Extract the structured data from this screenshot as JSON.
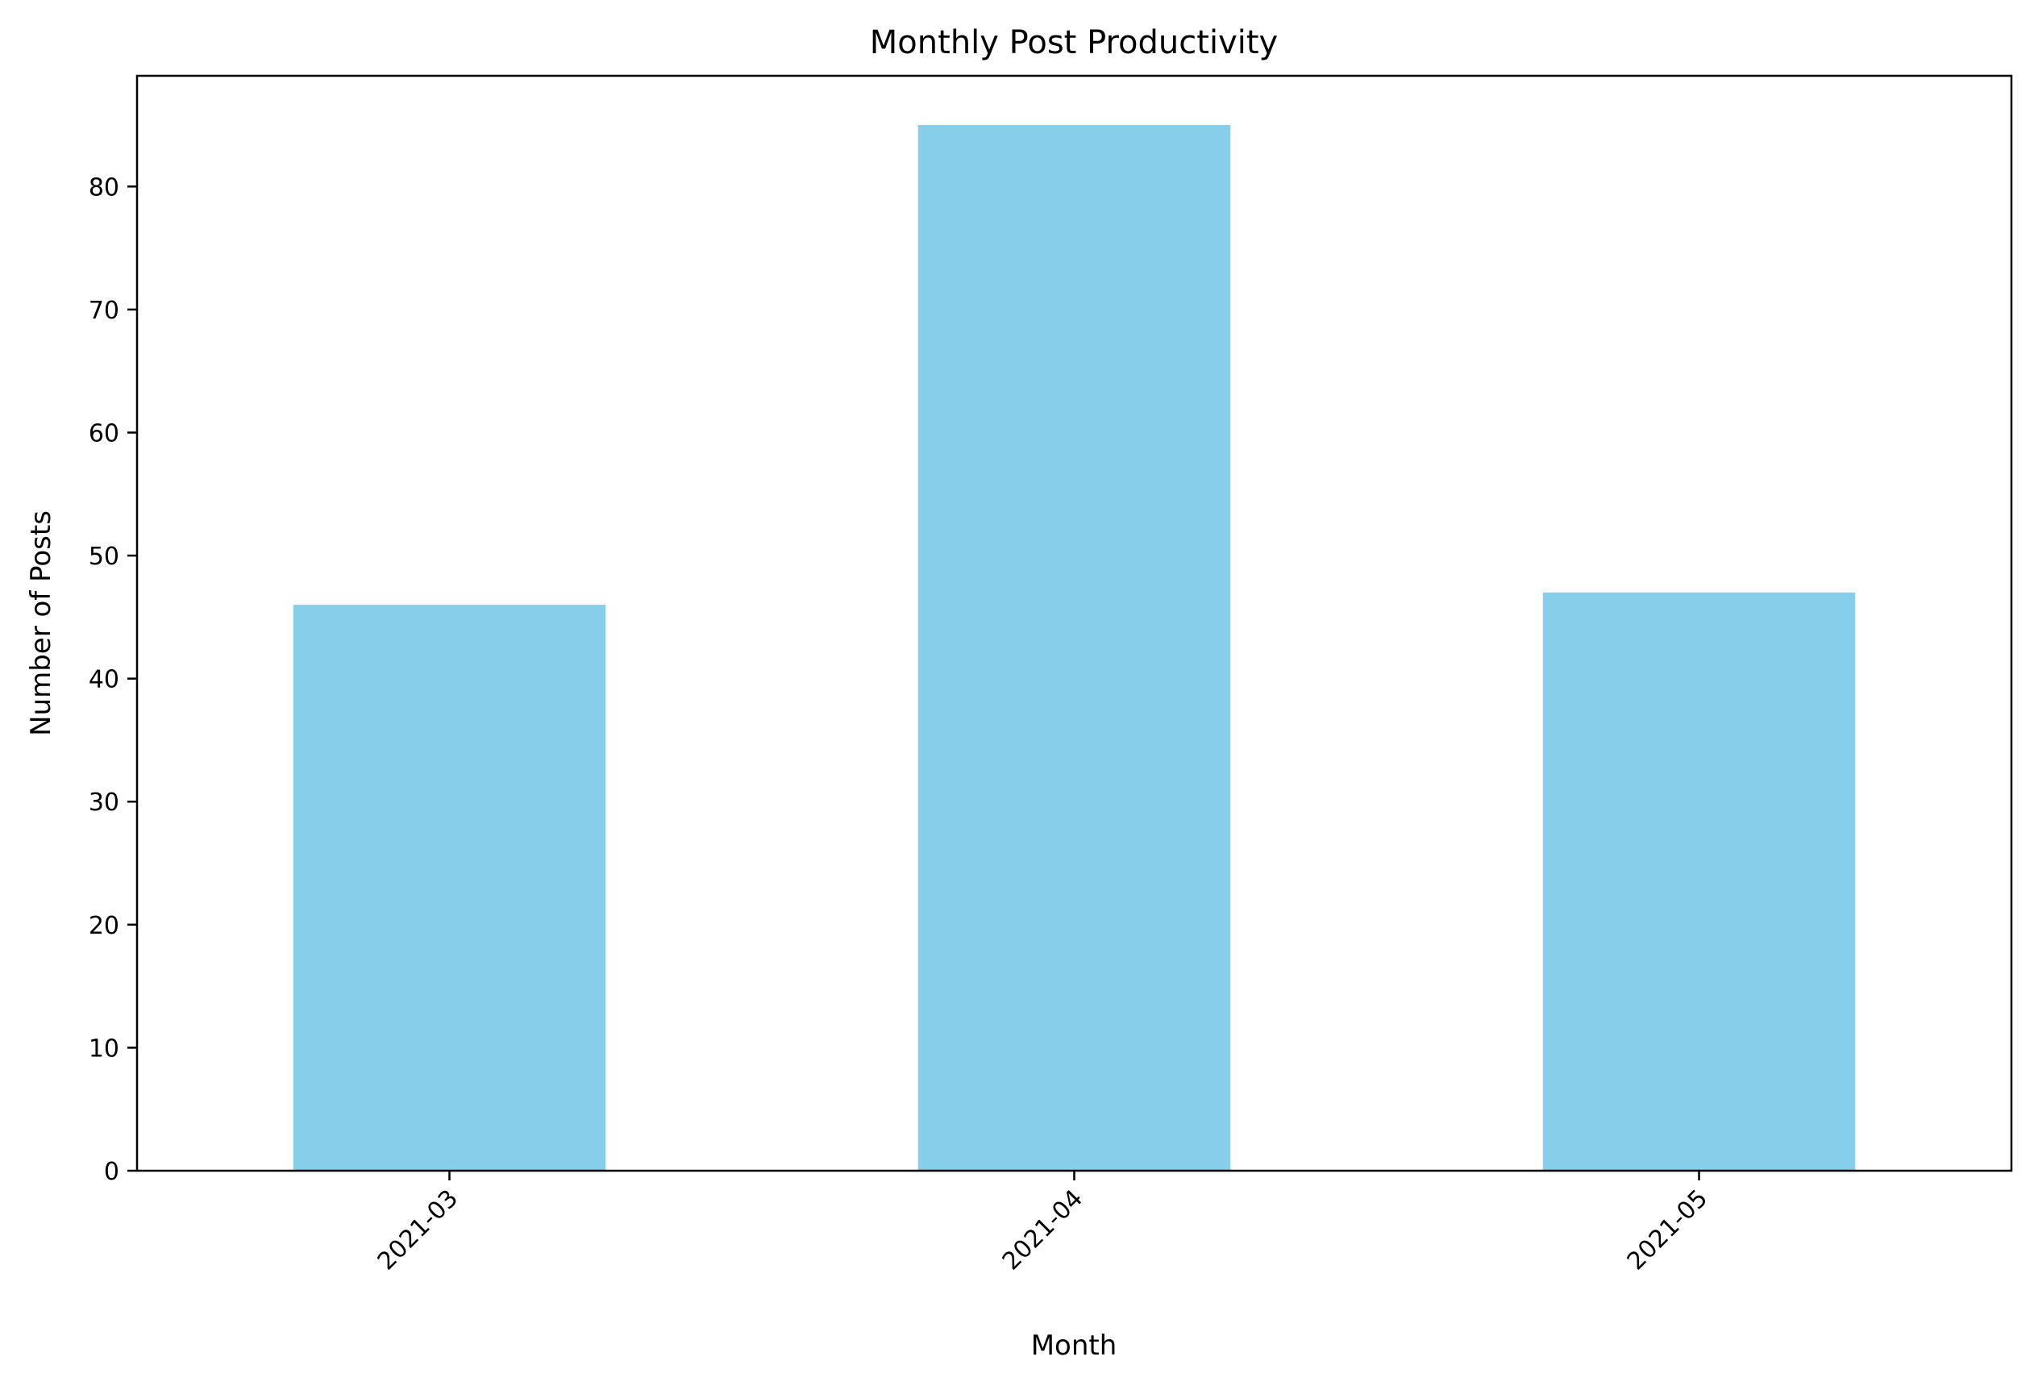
{
  "chart_data": {
    "type": "bar",
    "title": "Monthly Post Productivity",
    "xlabel": "Month",
    "ylabel": "Number of Posts",
    "categories": [
      "2021-03",
      "2021-04",
      "2021-05"
    ],
    "values": [
      46,
      85,
      47
    ],
    "ylim": [
      0,
      89
    ],
    "yticks": [
      0,
      10,
      20,
      30,
      40,
      50,
      60,
      70,
      80
    ],
    "x_tick_rotation": 45,
    "grid": false,
    "legend": false,
    "bar_color": "#87ceeb"
  }
}
